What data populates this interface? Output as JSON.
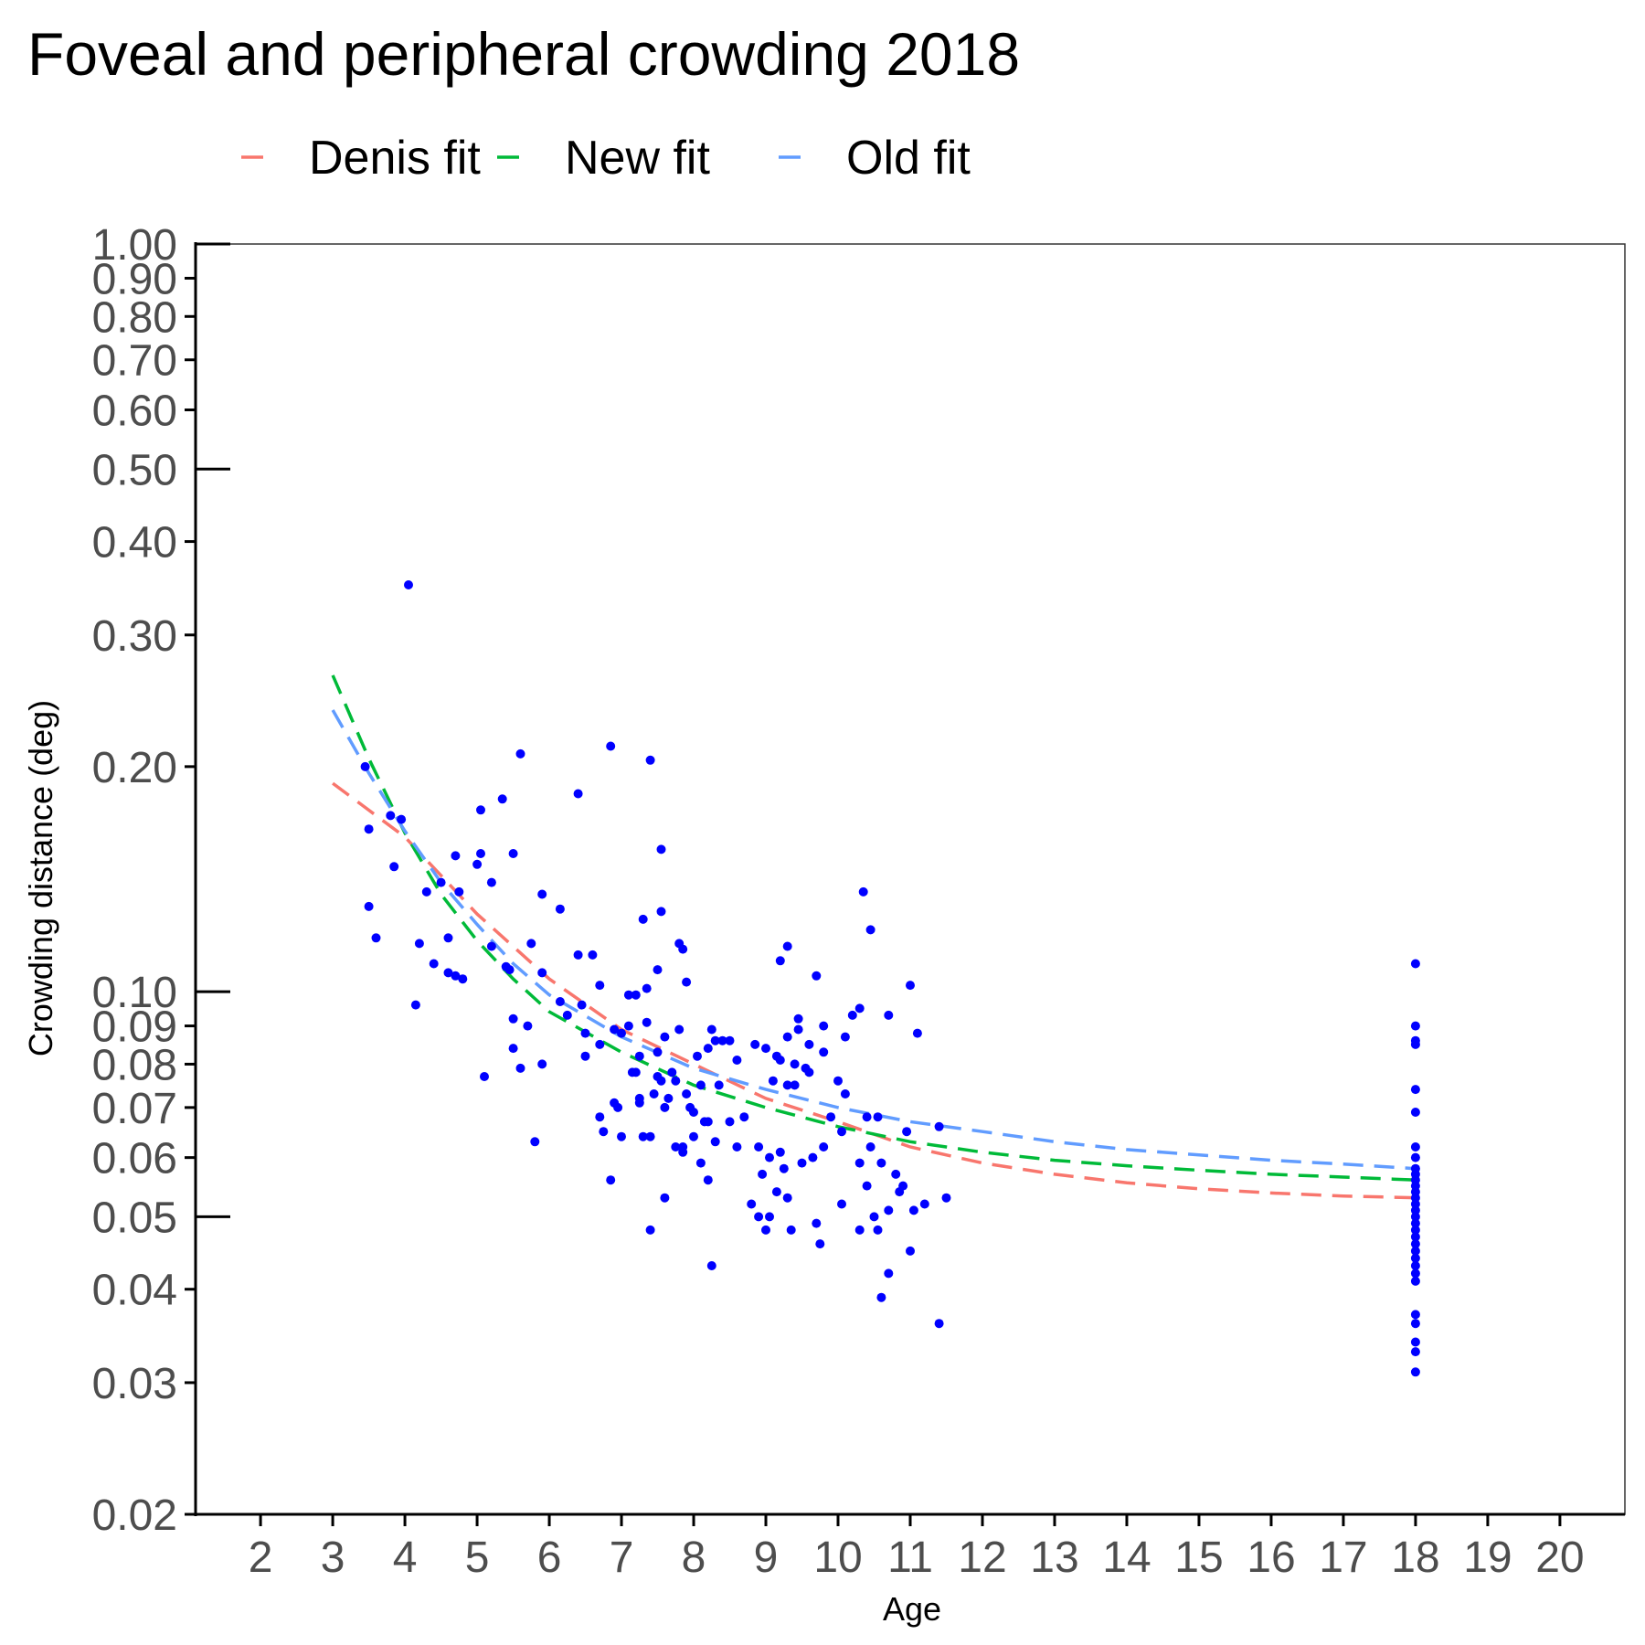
{
  "chart_data": {
    "type": "scatter",
    "title": "Foveal and peripheral crowding 2018",
    "xlabel": "Age",
    "ylabel": "Crowding distance (deg)",
    "xlim": [
      1.1,
      20.9
    ],
    "ylim": [
      0.02,
      1.0
    ],
    "y_scale": "log",
    "x_ticks": [
      2,
      3,
      4,
      5,
      6,
      7,
      8,
      9,
      10,
      11,
      12,
      13,
      14,
      15,
      16,
      17,
      18,
      19,
      20
    ],
    "x_tick_labels": [
      "2",
      "3",
      "4",
      "5",
      "6",
      "7",
      "8",
      "9",
      "10",
      "11",
      "12",
      "13",
      "14",
      "15",
      "16",
      "17",
      "18",
      "19",
      "20"
    ],
    "y_ticks": [
      0.02,
      0.03,
      0.04,
      0.05,
      0.06,
      0.07,
      0.08,
      0.09,
      0.1,
      0.2,
      0.3,
      0.4,
      0.5,
      0.6,
      0.7,
      0.8,
      0.9,
      1.0
    ],
    "y_tick_labels": [
      "0.02",
      "0.03",
      "0.04",
      "0.05",
      "0.06",
      "0.07",
      "0.08",
      "0.09",
      "0.10",
      "0.20",
      "0.30",
      "0.40",
      "0.50",
      "0.60",
      "0.70",
      "0.80",
      "0.90",
      "1.00"
    ],
    "major_y_ticks": [
      0.05,
      0.1,
      0.5,
      1.0
    ],
    "grid": false,
    "legend_position": "top",
    "point_color": "#0000ff",
    "series": [
      {
        "name": "Denis fit",
        "color": "#f8766d",
        "style": "dashed",
        "points": [
          [
            3,
            0.19
          ],
          [
            4,
            0.161
          ],
          [
            5,
            0.127
          ],
          [
            6,
            0.104
          ],
          [
            7,
            0.089
          ],
          [
            8,
            0.08
          ],
          [
            9,
            0.072
          ],
          [
            10,
            0.067
          ],
          [
            11,
            0.062
          ],
          [
            12,
            0.059
          ],
          [
            13,
            0.057
          ],
          [
            14,
            0.0555
          ],
          [
            15,
            0.0545
          ],
          [
            16,
            0.0538
          ],
          [
            17,
            0.0533
          ],
          [
            18,
            0.053
          ]
        ]
      },
      {
        "name": "New fit",
        "color": "#00ba38",
        "style": "dashed",
        "points": [
          [
            3,
            0.265
          ],
          [
            3.5,
            0.205
          ],
          [
            4,
            0.163
          ],
          [
            4.5,
            0.135
          ],
          [
            5,
            0.117
          ],
          [
            5.5,
            0.104
          ],
          [
            6,
            0.094
          ],
          [
            7,
            0.083
          ],
          [
            8,
            0.075
          ],
          [
            9,
            0.07
          ],
          [
            10,
            0.066
          ],
          [
            11,
            0.063
          ],
          [
            12,
            0.061
          ],
          [
            13,
            0.0595
          ],
          [
            14,
            0.0585
          ],
          [
            15,
            0.0577
          ],
          [
            16,
            0.057
          ],
          [
            17,
            0.0565
          ],
          [
            18,
            0.056
          ]
        ]
      },
      {
        "name": "Old fit",
        "color": "#619cff",
        "style": "dashed",
        "points": [
          [
            3,
            0.238
          ],
          [
            3.5,
            0.196
          ],
          [
            4,
            0.164
          ],
          [
            4.5,
            0.14
          ],
          [
            5,
            0.123
          ],
          [
            5.5,
            0.109
          ],
          [
            6,
            0.099
          ],
          [
            7,
            0.087
          ],
          [
            8,
            0.079
          ],
          [
            9,
            0.074
          ],
          [
            10,
            0.07
          ],
          [
            11,
            0.067
          ],
          [
            12,
            0.065
          ],
          [
            13,
            0.063
          ],
          [
            14,
            0.0615
          ],
          [
            15,
            0.0605
          ],
          [
            16,
            0.0595
          ],
          [
            17,
            0.0588
          ],
          [
            18,
            0.058
          ]
        ]
      }
    ],
    "points": [
      [
        4.05,
        0.35
      ],
      [
        3.45,
        0.2
      ],
      [
        3.5,
        0.165
      ],
      [
        3.5,
        0.13
      ],
      [
        3.6,
        0.118
      ],
      [
        3.8,
        0.172
      ],
      [
        3.85,
        0.147
      ],
      [
        3.95,
        0.17
      ],
      [
        4.15,
        0.096
      ],
      [
        4.2,
        0.116
      ],
      [
        4.3,
        0.136
      ],
      [
        4.4,
        0.109
      ],
      [
        4.5,
        0.14
      ],
      [
        4.6,
        0.106
      ],
      [
        4.6,
        0.118
      ],
      [
        4.7,
        0.105
      ],
      [
        4.7,
        0.152
      ],
      [
        4.75,
        0.136
      ],
      [
        4.8,
        0.104
      ],
      [
        5.0,
        0.148
      ],
      [
        5.05,
        0.153
      ],
      [
        5.05,
        0.175
      ],
      [
        5.1,
        0.077
      ],
      [
        5.2,
        0.14
      ],
      [
        5.2,
        0.115
      ],
      [
        5.35,
        0.181
      ],
      [
        5.4,
        0.108
      ],
      [
        5.45,
        0.107
      ],
      [
        5.5,
        0.092
      ],
      [
        5.5,
        0.084
      ],
      [
        5.5,
        0.153
      ],
      [
        5.6,
        0.208
      ],
      [
        5.6,
        0.079
      ],
      [
        5.7,
        0.09
      ],
      [
        5.75,
        0.116
      ],
      [
        5.8,
        0.063
      ],
      [
        5.9,
        0.08
      ],
      [
        5.9,
        0.106
      ],
      [
        5.9,
        0.135
      ],
      [
        6.15,
        0.097
      ],
      [
        6.15,
        0.129
      ],
      [
        6.25,
        0.093
      ],
      [
        6.4,
        0.184
      ],
      [
        6.4,
        0.112
      ],
      [
        6.45,
        0.096
      ],
      [
        6.5,
        0.088
      ],
      [
        6.5,
        0.082
      ],
      [
        6.6,
        0.112
      ],
      [
        6.7,
        0.068
      ],
      [
        6.7,
        0.085
      ],
      [
        6.7,
        0.102
      ],
      [
        6.75,
        0.065
      ],
      [
        6.85,
        0.213
      ],
      [
        6.85,
        0.056
      ],
      [
        6.9,
        0.089
      ],
      [
        6.9,
        0.071
      ],
      [
        6.95,
        0.07
      ],
      [
        7.0,
        0.064
      ],
      [
        7.0,
        0.088
      ],
      [
        7.1,
        0.099
      ],
      [
        7.1,
        0.09
      ],
      [
        7.15,
        0.078
      ],
      [
        7.2,
        0.099
      ],
      [
        7.2,
        0.078
      ],
      [
        7.25,
        0.072
      ],
      [
        7.25,
        0.071
      ],
      [
        7.25,
        0.082
      ],
      [
        7.3,
        0.125
      ],
      [
        7.3,
        0.064
      ],
      [
        7.35,
        0.101
      ],
      [
        7.35,
        0.091
      ],
      [
        7.4,
        0.204
      ],
      [
        7.4,
        0.048
      ],
      [
        7.4,
        0.064
      ],
      [
        7.45,
        0.073
      ],
      [
        7.5,
        0.107
      ],
      [
        7.5,
        0.083
      ],
      [
        7.5,
        0.077
      ],
      [
        7.55,
        0.155
      ],
      [
        7.55,
        0.128
      ],
      [
        7.55,
        0.076
      ],
      [
        7.6,
        0.053
      ],
      [
        7.6,
        0.07
      ],
      [
        7.6,
        0.087
      ],
      [
        7.65,
        0.072
      ],
      [
        7.7,
        0.078
      ],
      [
        7.75,
        0.062
      ],
      [
        7.75,
        0.076
      ],
      [
        7.8,
        0.089
      ],
      [
        7.8,
        0.116
      ],
      [
        7.85,
        0.061
      ],
      [
        7.85,
        0.062
      ],
      [
        7.85,
        0.114
      ],
      [
        7.9,
        0.103
      ],
      [
        7.9,
        0.073
      ],
      [
        7.95,
        0.07
      ],
      [
        8.0,
        0.069
      ],
      [
        8.0,
        0.064
      ],
      [
        8.05,
        0.082
      ],
      [
        8.1,
        0.059
      ],
      [
        8.1,
        0.075
      ],
      [
        8.15,
        0.067
      ],
      [
        8.2,
        0.067
      ],
      [
        8.2,
        0.084
      ],
      [
        8.2,
        0.056
      ],
      [
        8.25,
        0.043
      ],
      [
        8.25,
        0.089
      ],
      [
        8.3,
        0.086
      ],
      [
        8.3,
        0.063
      ],
      [
        8.35,
        0.075
      ],
      [
        8.4,
        0.086
      ],
      [
        8.5,
        0.086
      ],
      [
        8.5,
        0.067
      ],
      [
        8.6,
        0.062
      ],
      [
        8.6,
        0.081
      ],
      [
        8.7,
        0.068
      ],
      [
        8.8,
        0.052
      ],
      [
        8.85,
        0.085
      ],
      [
        8.9,
        0.05
      ],
      [
        8.9,
        0.062
      ],
      [
        8.95,
        0.057
      ],
      [
        9.0,
        0.048
      ],
      [
        9.0,
        0.084
      ],
      [
        9.05,
        0.05
      ],
      [
        9.05,
        0.06
      ],
      [
        9.1,
        0.076
      ],
      [
        9.15,
        0.082
      ],
      [
        9.15,
        0.054
      ],
      [
        9.2,
        0.11
      ],
      [
        9.2,
        0.081
      ],
      [
        9.2,
        0.061
      ],
      [
        9.25,
        0.058
      ],
      [
        9.3,
        0.087
      ],
      [
        9.3,
        0.075
      ],
      [
        9.3,
        0.115
      ],
      [
        9.3,
        0.053
      ],
      [
        9.35,
        0.048
      ],
      [
        9.4,
        0.08
      ],
      [
        9.4,
        0.075
      ],
      [
        9.45,
        0.092
      ],
      [
        9.45,
        0.089
      ],
      [
        9.5,
        0.059
      ],
      [
        9.55,
        0.079
      ],
      [
        9.6,
        0.085
      ],
      [
        9.6,
        0.078
      ],
      [
        9.65,
        0.06
      ],
      [
        9.7,
        0.105
      ],
      [
        9.7,
        0.049
      ],
      [
        9.75,
        0.046
      ],
      [
        9.8,
        0.09
      ],
      [
        9.8,
        0.083
      ],
      [
        9.8,
        0.062
      ],
      [
        9.9,
        0.068
      ],
      [
        10.0,
        0.076
      ],
      [
        10.05,
        0.052
      ],
      [
        10.05,
        0.065
      ],
      [
        10.1,
        0.073
      ],
      [
        10.1,
        0.087
      ],
      [
        10.2,
        0.093
      ],
      [
        10.3,
        0.095
      ],
      [
        10.3,
        0.048
      ],
      [
        10.3,
        0.059
      ],
      [
        10.35,
        0.136
      ],
      [
        10.4,
        0.055
      ],
      [
        10.4,
        0.068
      ],
      [
        10.45,
        0.121
      ],
      [
        10.45,
        0.062
      ],
      [
        10.5,
        0.05
      ],
      [
        10.55,
        0.048
      ],
      [
        10.55,
        0.068
      ],
      [
        10.6,
        0.039
      ],
      [
        10.6,
        0.059
      ],
      [
        10.7,
        0.042
      ],
      [
        10.7,
        0.051
      ],
      [
        10.7,
        0.093
      ],
      [
        10.8,
        0.057
      ],
      [
        10.85,
        0.054
      ],
      [
        10.9,
        0.055
      ],
      [
        10.95,
        0.065
      ],
      [
        11.0,
        0.045
      ],
      [
        11.0,
        0.102
      ],
      [
        11.05,
        0.051
      ],
      [
        11.1,
        0.088
      ],
      [
        11.2,
        0.052
      ],
      [
        11.4,
        0.066
      ],
      [
        11.4,
        0.036
      ],
      [
        11.5,
        0.053
      ],
      [
        18,
        0.109
      ],
      [
        18,
        0.09
      ],
      [
        18,
        0.086
      ],
      [
        18,
        0.085
      ],
      [
        18,
        0.074
      ],
      [
        18,
        0.069
      ],
      [
        18,
        0.062
      ],
      [
        18,
        0.06
      ],
      [
        18,
        0.058
      ],
      [
        18,
        0.057
      ],
      [
        18,
        0.056
      ],
      [
        18,
        0.055
      ],
      [
        18,
        0.054
      ],
      [
        18,
        0.053
      ],
      [
        18,
        0.052
      ],
      [
        18,
        0.051
      ],
      [
        18,
        0.05
      ],
      [
        18,
        0.049
      ],
      [
        18,
        0.048
      ],
      [
        18,
        0.047
      ],
      [
        18,
        0.046
      ],
      [
        18,
        0.045
      ],
      [
        18,
        0.044
      ],
      [
        18,
        0.043
      ],
      [
        18,
        0.042
      ],
      [
        18,
        0.041
      ],
      [
        18,
        0.037
      ],
      [
        18,
        0.036
      ],
      [
        18,
        0.034
      ],
      [
        18,
        0.033
      ],
      [
        18,
        0.031
      ]
    ]
  }
}
